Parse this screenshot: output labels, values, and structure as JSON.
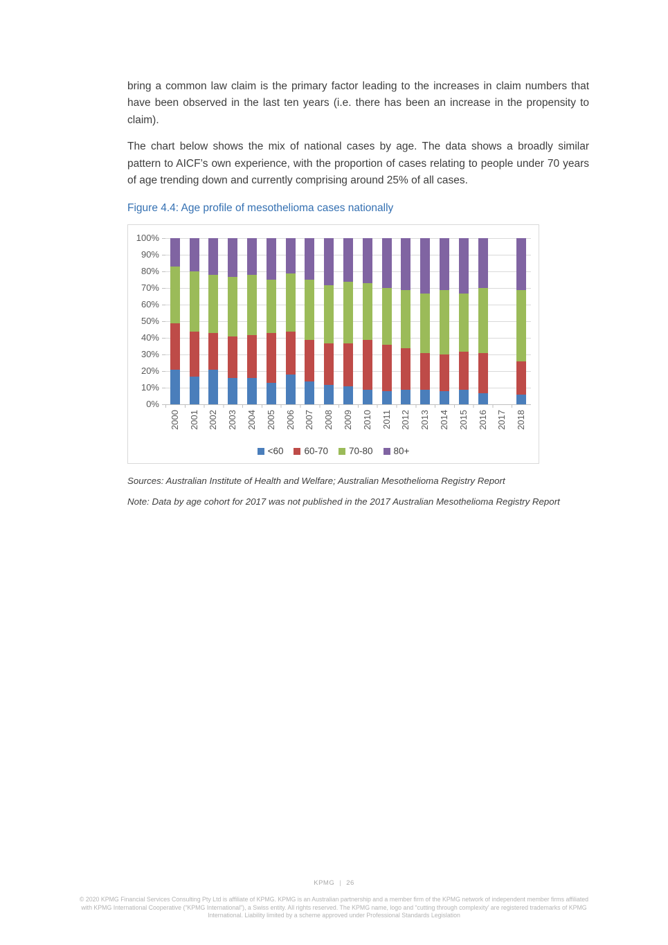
{
  "page": {
    "paragraph1": "bring a common law claim is the primary factor leading to the increases in claim numbers that have been observed in the last ten years (i.e. there has been an increase in the propensity to claim).",
    "paragraph2": "The chart below shows the mix of national cases by age. The data shows a broadly similar pattern to AICF’s own experience, with the proportion of cases relating to people under 70 years of age trending down and currently comprising around 25% of all cases.",
    "figure_caption": "Figure 4.4: Age profile of mesothelioma cases nationally",
    "sources": "Sources: Australian Institute of Health and Welfare; Australian Mesothelioma Registry Report",
    "note": "Note: Data by age cohort for 2017 was not published in the 2017 Australian Mesothelioma Registry Report",
    "footer": {
      "brand": "KPMG",
      "separator": "|",
      "page_number": "26",
      "legal": "© 2020 KPMG Financial Services Consulting Pty Ltd is affiliate of KPMG. KPMG is an Australian partnership and a member firm of the KPMG network of independent member firms affiliated with KPMG International Cooperative (“KPMG International”), a Swiss entity. All rights reserved. The KPMG name, logo and “cutting through complexity’ are registered trademarks of KPMG International. Liability limited by a scheme approved under Professional Standards Legislation"
    },
    "colors": {
      "caption_blue": "#3470b2",
      "gridline": "#d9d9d9",
      "axis_text": "#595959"
    }
  },
  "chart_data": {
    "type": "bar",
    "variant": "stacked-100-percent",
    "title": "Age profile of mesothelioma cases nationally",
    "xlabel": "",
    "ylabel": "",
    "ylim": [
      0,
      100
    ],
    "grid": true,
    "legend_position": "bottom",
    "y_ticks": [
      "100%",
      "90%",
      "80%",
      "70%",
      "60%",
      "50%",
      "40%",
      "30%",
      "20%",
      "10%",
      "0%"
    ],
    "categories": [
      "2000",
      "2001",
      "2002",
      "2003",
      "2004",
      "2005",
      "2006",
      "2007",
      "2008",
      "2009",
      "2010",
      "2011",
      "2012",
      "2013",
      "2014",
      "2015",
      "2016",
      "2017",
      "2018"
    ],
    "series": [
      {
        "name": "<60",
        "color": "#4A7EBB",
        "values": [
          21,
          17,
          21,
          16,
          16,
          13,
          18,
          14,
          12,
          11,
          9,
          8,
          9,
          9,
          8,
          9,
          7,
          0,
          6
        ]
      },
      {
        "name": "60-70",
        "color": "#BE4B48",
        "values": [
          28,
          27,
          22,
          25,
          26,
          30,
          26,
          25,
          25,
          26,
          30,
          28,
          25,
          22,
          22,
          23,
          24,
          0,
          20
        ]
      },
      {
        "name": "70-80",
        "color": "#9BBB59",
        "values": [
          34,
          36,
          35,
          36,
          36,
          32,
          35,
          36,
          35,
          37,
          34,
          34,
          35,
          36,
          39,
          35,
          39,
          0,
          43
        ]
      },
      {
        "name": "80+",
        "color": "#8064A2",
        "values": [
          17,
          20,
          22,
          23,
          22,
          25,
          21,
          25,
          28,
          26,
          27,
          30,
          31,
          33,
          31,
          33,
          30,
          0,
          31
        ]
      }
    ],
    "note": "No data shown for 2017"
  }
}
